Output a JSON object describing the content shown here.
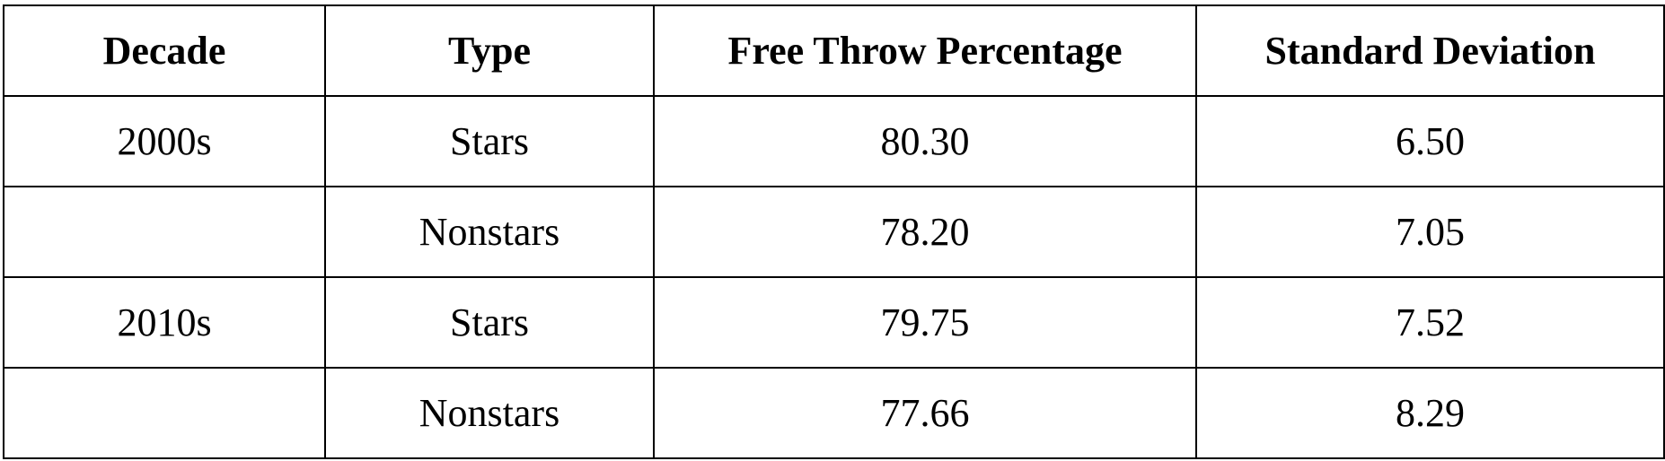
{
  "table": {
    "headers": [
      "Decade",
      "Type",
      "Free Throw Percentage",
      "Standard Deviation"
    ],
    "rows": [
      [
        "2000s",
        "Stars",
        "80.30",
        "6.50"
      ],
      [
        "",
        "Nonstars",
        "78.20",
        "7.05"
      ],
      [
        "2010s",
        "Stars",
        "79.75",
        "7.52"
      ],
      [
        "",
        "Nonstars",
        "77.66",
        "8.29"
      ]
    ]
  }
}
